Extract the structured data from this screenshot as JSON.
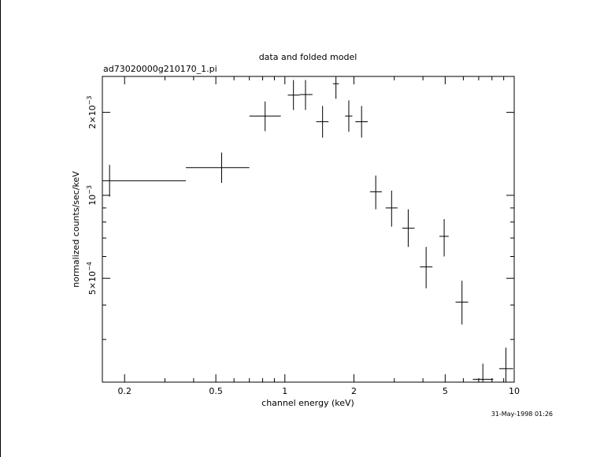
{
  "chart_data": {
    "type": "scatter",
    "title": "data and folded model",
    "subtitle": "ad73020000g210170_1.pi",
    "xlabel": "channel energy (keV)",
    "ylabel": "normalized counts/sec/keV",
    "xscale": "log",
    "yscale": "log",
    "xlim": [
      0.16,
      10.0
    ],
    "ylim": [
      0.00021,
      0.0027
    ],
    "x_ticks": [
      {
        "value": 0.2,
        "label": "0.2"
      },
      {
        "value": 0.5,
        "label": "0.5"
      },
      {
        "value": 1,
        "label": "1"
      },
      {
        "value": 2,
        "label": "2"
      },
      {
        "value": 5,
        "label": "5"
      },
      {
        "value": 10,
        "label": "10"
      }
    ],
    "y_ticks": [
      {
        "value": 0.0005,
        "mant": "5×10",
        "exp": "−4"
      },
      {
        "value": 0.001,
        "mant": "10",
        "exp": "−3"
      },
      {
        "value": 0.002,
        "mant": "2×10",
        "exp": "−3"
      }
    ],
    "series": [
      {
        "points": [
          {
            "x": 0.172,
            "xlo": 0.16,
            "xhi": 0.37,
            "y": 0.00113,
            "ylo": 0.00099,
            "yhi": 0.00129
          },
          {
            "x": 0.53,
            "xlo": 0.37,
            "xhi": 0.7,
            "y": 0.00126,
            "ylo": 0.00111,
            "yhi": 0.00143
          },
          {
            "x": 0.82,
            "xlo": 0.7,
            "xhi": 0.96,
            "y": 0.00194,
            "ylo": 0.00171,
            "yhi": 0.00219
          },
          {
            "x": 1.09,
            "xlo": 1.03,
            "xhi": 1.16,
            "y": 0.00231,
            "ylo": 0.00204,
            "yhi": 0.00262
          },
          {
            "x": 1.23,
            "xlo": 1.16,
            "xhi": 1.32,
            "y": 0.00232,
            "ylo": 0.00204,
            "yhi": 0.00262
          },
          {
            "x": 1.46,
            "xlo": 1.37,
            "xhi": 1.55,
            "y": 0.00185,
            "ylo": 0.00162,
            "yhi": 0.00211
          },
          {
            "x": 1.67,
            "xlo": 1.62,
            "xhi": 1.72,
            "y": 0.00254,
            "ylo": 0.00224,
            "yhi": 0.0027
          },
          {
            "x": 1.9,
            "xlo": 1.83,
            "xhi": 1.97,
            "y": 0.00194,
            "ylo": 0.0017,
            "yhi": 0.00221
          },
          {
            "x": 2.16,
            "xlo": 2.03,
            "xhi": 2.3,
            "y": 0.00185,
            "ylo": 0.00162,
            "yhi": 0.00211
          },
          {
            "x": 2.49,
            "xlo": 2.35,
            "xhi": 2.65,
            "y": 0.00103,
            "ylo": 0.00089,
            "yhi": 0.00118
          },
          {
            "x": 2.92,
            "xlo": 2.75,
            "xhi": 3.1,
            "y": 0.0009,
            "ylo": 0.00077,
            "yhi": 0.00104
          },
          {
            "x": 3.45,
            "xlo": 3.25,
            "xhi": 3.68,
            "y": 0.00076,
            "ylo": 0.00065,
            "yhi": 0.00089
          },
          {
            "x": 4.13,
            "xlo": 3.88,
            "xhi": 4.4,
            "y": 0.00055,
            "ylo": 0.00046,
            "yhi": 0.00065
          },
          {
            "x": 4.95,
            "xlo": 4.72,
            "xhi": 5.18,
            "y": 0.00071,
            "ylo": 0.0006,
            "yhi": 0.00082
          },
          {
            "x": 5.92,
            "xlo": 5.55,
            "xhi": 6.3,
            "y": 0.00041,
            "ylo": 0.00034,
            "yhi": 0.00049
          },
          {
            "x": 7.3,
            "xlo": 6.6,
            "xhi": 8.1,
            "y": 0.000215,
            "ylo": 0.00021,
            "yhi": 0.000245
          },
          {
            "x": 9.2,
            "xlo": 8.6,
            "xhi": 9.9,
            "y": 0.000235,
            "ylo": 0.00021,
            "yhi": 0.00028
          }
        ]
      }
    ]
  },
  "footer": {
    "timestamp": "31-May-1998 01:26"
  }
}
